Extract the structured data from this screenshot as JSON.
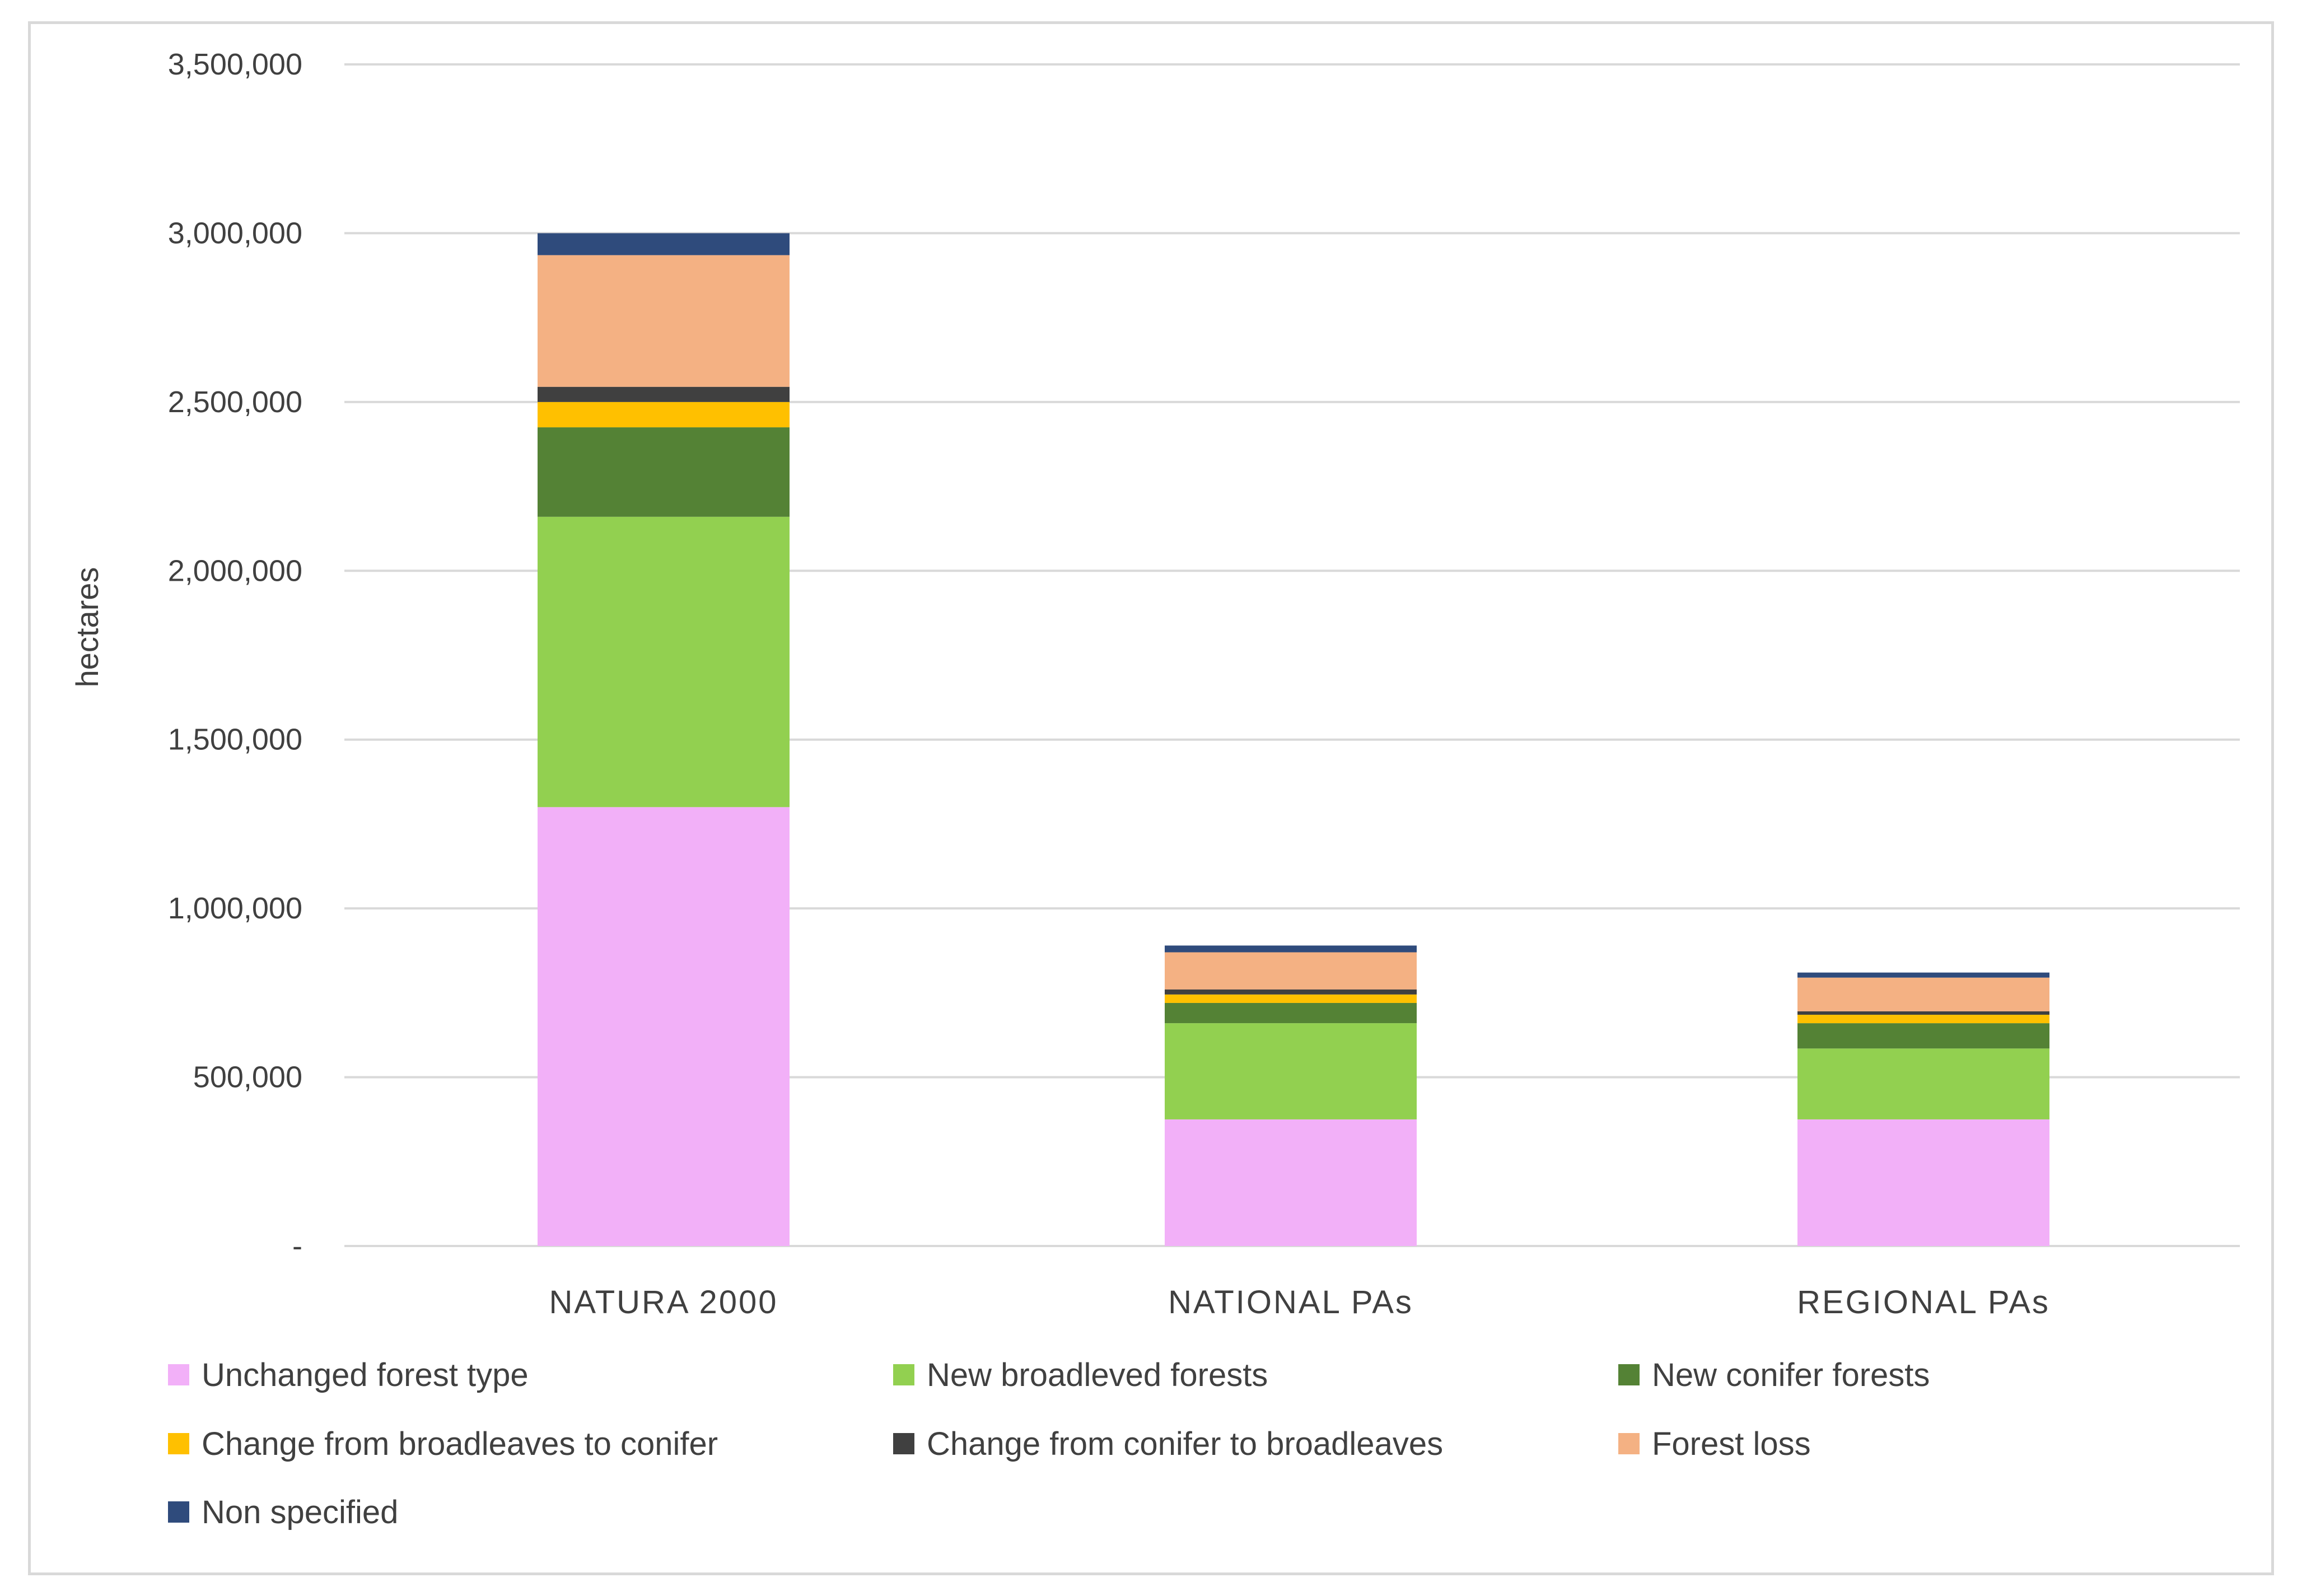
{
  "chart_data": {
    "type": "bar",
    "stacked": true,
    "title": "",
    "xlabel": "",
    "ylabel": "hectares",
    "ylim": [
      0,
      3500000
    ],
    "yticks": [
      0,
      500000,
      1000000,
      1500000,
      2000000,
      2500000,
      3000000,
      3500000
    ],
    "ytick_labels": [
      "-",
      "500,000",
      "1,000,000",
      "1,500,000",
      "2,000,000",
      "2,500,000",
      "3,000,000",
      "3,500,000"
    ],
    "grid": true,
    "legend_position": "bottom",
    "categories": [
      "NATURA 2000",
      "NATIONAL PAs",
      "REGIONAL PAs"
    ],
    "series": [
      {
        "name": "Unchanged forest type",
        "color": "#f2b0f8",
        "values": [
          1300000,
          375000,
          375000
        ]
      },
      {
        "name": "New broadleved forests",
        "color": "#92d050",
        "values": [
          860000,
          285000,
          210000
        ]
      },
      {
        "name": "New conifer forests",
        "color": "#548235",
        "values": [
          265000,
          60000,
          75000
        ]
      },
      {
        "name": "Change from broadleaves to conifer",
        "color": "#ffc000",
        "values": [
          75000,
          25000,
          25000
        ]
      },
      {
        "name": "Change from conifer to broadleaves",
        "color": "#404040",
        "values": [
          45000,
          15000,
          10000
        ]
      },
      {
        "name": "Forest loss",
        "color": "#f4b183",
        "values": [
          390000,
          110000,
          100000
        ]
      },
      {
        "name": "Non specified",
        "color": "#2f4b7c",
        "values": [
          65000,
          20000,
          15000
        ]
      }
    ]
  }
}
